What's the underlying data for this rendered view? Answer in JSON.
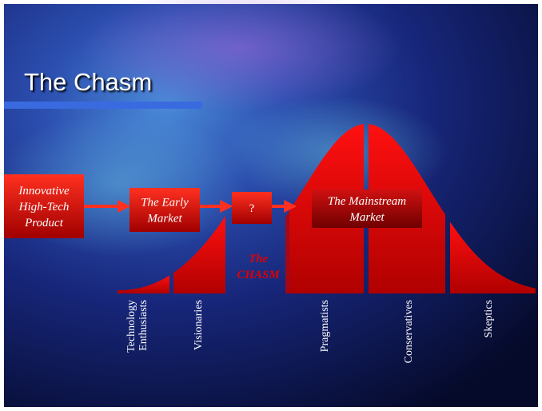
{
  "title": "The Chasm",
  "boxes": [
    {
      "lines": [
        "Innovative",
        "High-Tech",
        "Product"
      ]
    },
    {
      "lines": [
        "The Early",
        "Market"
      ]
    },
    {
      "lines": [
        "?"
      ]
    },
    {
      "lines": [
        "The Mainstream",
        "Market"
      ]
    }
  ],
  "chasm_label": {
    "lines": [
      "The",
      "CHASM"
    ]
  },
  "segments": [
    {
      "lines": [
        "Technology",
        "Enthusiasts"
      ]
    },
    {
      "lines": [
        "Visionaries"
      ]
    },
    {
      "lines": [
        "Pragmatists"
      ]
    },
    {
      "lines": [
        "Conservatives"
      ]
    },
    {
      "lines": [
        "Skeptics"
      ]
    }
  ]
}
